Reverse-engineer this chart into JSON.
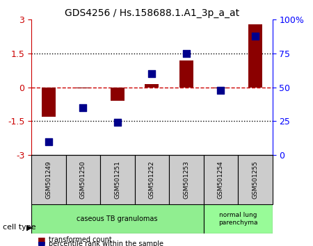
{
  "title": "GDS4256 / Hs.158688.1.A1_3p_a_at",
  "samples": [
    "GSM501249",
    "GSM501250",
    "GSM501251",
    "GSM501252",
    "GSM501253",
    "GSM501254",
    "GSM501255"
  ],
  "transformed_count": [
    -1.3,
    -0.05,
    -0.6,
    0.15,
    1.2,
    -0.05,
    2.8
  ],
  "percentile_rank": [
    10,
    35,
    24,
    60,
    75,
    48,
    88
  ],
  "ylim_left": [
    -3,
    3
  ],
  "ylim_right": [
    0,
    100
  ],
  "yticks_left": [
    -3,
    -1.5,
    0,
    1.5,
    3
  ],
  "yticks_right": [
    0,
    25,
    50,
    75,
    100
  ],
  "yticklabels_right": [
    "0",
    "25",
    "50",
    "75",
    "100%"
  ],
  "bar_color": "#8B0000",
  "dot_color": "#00008B",
  "hline_color": "#cc0000",
  "dotted_color": "black",
  "cell_types": [
    {
      "label": "caseous TB granulomas",
      "samples": [
        0,
        1,
        2,
        3,
        4
      ],
      "color": "#90EE90"
    },
    {
      "label": "normal lung\nparenchyma",
      "samples": [
        5,
        6
      ],
      "color": "#98FB98"
    }
  ],
  "xlabel_bg": "#cccccc",
  "cell_type_label": "cell type",
  "legend_bar_label": "transformed count",
  "legend_dot_label": "percentile rank within the sample",
  "bar_width": 0.4,
  "dot_size": 60
}
